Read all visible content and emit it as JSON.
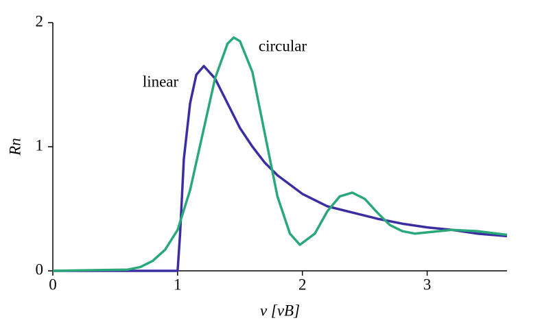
{
  "chart_data": {
    "type": "line",
    "xlabel": "v [vB]",
    "ylabel": "Rn",
    "xlim": [
      0,
      3.64
    ],
    "ylim": [
      0,
      2
    ],
    "xticks": [
      0,
      1,
      2,
      3
    ],
    "yticks": [
      0,
      1,
      2
    ],
    "series": [
      {
        "name": "linear",
        "color": "#3a2ea0",
        "x": [
          0,
          0.99,
          1.0,
          1.02,
          1.05,
          1.1,
          1.15,
          1.21,
          1.3,
          1.4,
          1.5,
          1.6,
          1.7,
          1.8,
          2.0,
          2.2,
          2.4,
          2.6,
          2.8,
          3.0,
          3.2,
          3.4,
          3.64
        ],
        "values": [
          0,
          0,
          0,
          0.3,
          0.9,
          1.35,
          1.58,
          1.65,
          1.55,
          1.35,
          1.15,
          1.0,
          0.87,
          0.77,
          0.62,
          0.52,
          0.47,
          0.42,
          0.38,
          0.35,
          0.33,
          0.3,
          0.28
        ]
      },
      {
        "name": "circular",
        "color": "#2aa87a",
        "x": [
          0,
          0.6,
          0.7,
          0.8,
          0.9,
          1.0,
          1.1,
          1.2,
          1.3,
          1.4,
          1.45,
          1.5,
          1.6,
          1.7,
          1.8,
          1.9,
          1.98,
          2.1,
          2.2,
          2.3,
          2.4,
          2.5,
          2.6,
          2.7,
          2.8,
          2.9,
          3.0,
          3.2,
          3.4,
          3.64
        ],
        "values": [
          0,
          0.01,
          0.03,
          0.08,
          0.17,
          0.33,
          0.65,
          1.1,
          1.55,
          1.83,
          1.88,
          1.85,
          1.6,
          1.1,
          0.6,
          0.3,
          0.21,
          0.3,
          0.48,
          0.6,
          0.63,
          0.58,
          0.47,
          0.37,
          0.32,
          0.3,
          0.31,
          0.33,
          0.32,
          0.29
        ]
      }
    ]
  }
}
